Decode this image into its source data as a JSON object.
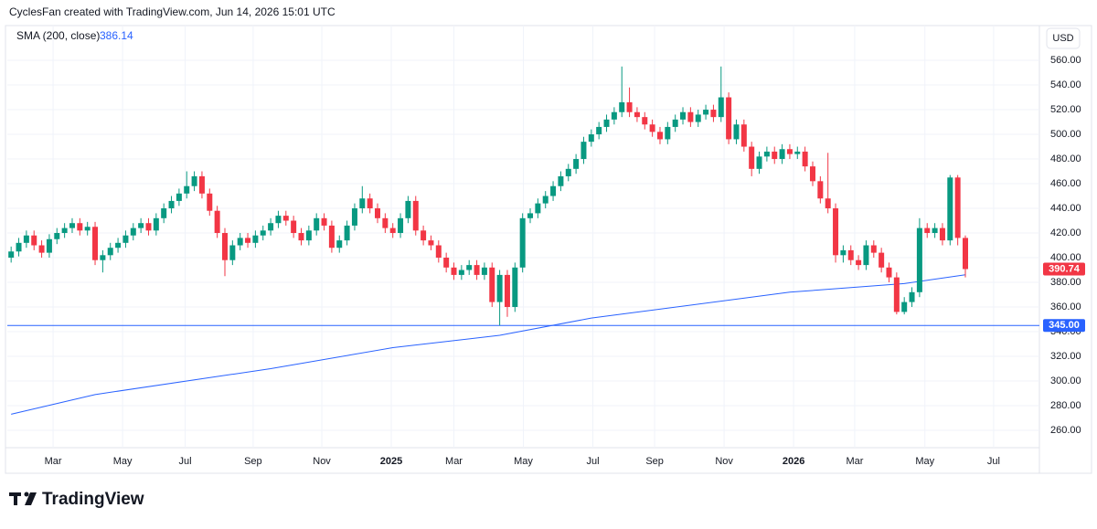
{
  "chart_data": {
    "type": "candlestick",
    "header": "CyclesFan created with TradingView.com, Jun 14, 2026 15:01 UTC",
    "currency": "USD",
    "brand": "TradingView",
    "up_color": "#089981",
    "down_color": "#f23645",
    "x": [
      0,
      1,
      2,
      3,
      4,
      5,
      6,
      7,
      8,
      9,
      10,
      11,
      12,
      13,
      14,
      15,
      16,
      17,
      18,
      19,
      20,
      21,
      22,
      23,
      24,
      25,
      26,
      27,
      28,
      29,
      30,
      31,
      32,
      33,
      34,
      35,
      36,
      37,
      38,
      39,
      40,
      41,
      42,
      43,
      44,
      45,
      46,
      47,
      48,
      49,
      50,
      51,
      52,
      53,
      54,
      55,
      56,
      57,
      58,
      59,
      60,
      61,
      62,
      63,
      64,
      65,
      66,
      67,
      68,
      69,
      70,
      71,
      72,
      73,
      74,
      75,
      76,
      77,
      78,
      79,
      80,
      81,
      82,
      83,
      84,
      85,
      86,
      87,
      88,
      89,
      90,
      91,
      92,
      93,
      94,
      95,
      96,
      97,
      98,
      99,
      100,
      101,
      102,
      103,
      104,
      105,
      106,
      107,
      108,
      109,
      110,
      111,
      112,
      113,
      114,
      115,
      116,
      117,
      118,
      119,
      120,
      121,
      122,
      123,
      124,
      125
    ],
    "open": [
      400,
      405,
      412,
      418,
      410,
      404,
      415,
      420,
      424,
      428,
      422,
      425,
      398,
      402,
      408,
      412,
      418,
      424,
      428,
      422,
      432,
      440,
      446,
      452,
      458,
      466,
      452,
      438,
      420,
      398,
      410,
      416,
      412,
      418,
      422,
      428,
      434,
      430,
      420,
      414,
      422,
      432,
      426,
      408,
      414,
      426,
      440,
      448,
      440,
      432,
      424,
      420,
      432,
      446,
      422,
      414,
      410,
      400,
      392,
      386,
      390,
      394,
      386,
      392,
      364,
      386,
      360,
      392,
      432,
      436,
      444,
      450,
      458,
      466,
      472,
      480,
      494,
      500,
      506,
      512,
      518,
      526,
      518,
      514,
      508,
      502,
      496,
      506,
      512,
      518,
      510,
      516,
      520,
      514,
      530,
      496,
      508,
      490,
      472,
      482,
      486,
      480,
      488,
      484,
      486,
      474,
      462,
      448,
      440,
      402,
      406,
      398,
      394,
      410,
      404,
      392,
      384,
      356,
      364,
      372,
      424,
      420,
      424,
      414,
      465,
      416
    ],
    "high": [
      409,
      416,
      422,
      422,
      414,
      419,
      424,
      428,
      432,
      432,
      429,
      429,
      406,
      412,
      416,
      422,
      428,
      432,
      432,
      436,
      444,
      450,
      456,
      470,
      470,
      470,
      456,
      442,
      424,
      414,
      420,
      420,
      422,
      426,
      432,
      438,
      438,
      434,
      424,
      426,
      436,
      436,
      430,
      418,
      430,
      444,
      458,
      452,
      444,
      436,
      428,
      436,
      450,
      450,
      426,
      418,
      414,
      404,
      396,
      394,
      398,
      398,
      396,
      396,
      390,
      390,
      396,
      436,
      440,
      448,
      454,
      462,
      470,
      476,
      484,
      498,
      504,
      510,
      516,
      522,
      555,
      538,
      522,
      518,
      512,
      506,
      510,
      516,
      522,
      522,
      520,
      524,
      524,
      555,
      534,
      512,
      512,
      494,
      486,
      490,
      490,
      492,
      492,
      490,
      490,
      478,
      466,
      485,
      444,
      410,
      410,
      402,
      414,
      414,
      408,
      396,
      388,
      368,
      376,
      432,
      428,
      428,
      428,
      467,
      467,
      418
    ],
    "low": [
      396,
      401,
      408,
      406,
      400,
      400,
      411,
      416,
      420,
      418,
      418,
      394,
      388,
      398,
      404,
      408,
      414,
      420,
      418,
      418,
      428,
      436,
      442,
      448,
      454,
      448,
      434,
      416,
      385,
      394,
      406,
      408,
      408,
      414,
      418,
      424,
      426,
      416,
      410,
      410,
      418,
      422,
      404,
      404,
      410,
      422,
      436,
      436,
      428,
      420,
      416,
      416,
      428,
      418,
      410,
      406,
      396,
      388,
      382,
      382,
      386,
      382,
      382,
      360,
      345,
      352,
      356,
      388,
      428,
      432,
      440,
      446,
      454,
      462,
      468,
      476,
      490,
      496,
      502,
      508,
      514,
      514,
      510,
      504,
      498,
      492,
      492,
      502,
      508,
      506,
      506,
      512,
      510,
      510,
      492,
      492,
      486,
      466,
      468,
      478,
      476,
      476,
      480,
      480,
      470,
      458,
      444,
      436,
      396,
      396,
      394,
      390,
      390,
      400,
      388,
      380,
      354,
      354,
      360,
      368,
      416,
      416,
      410,
      410,
      410,
      384
    ],
    "close": [
      405,
      412,
      418,
      410,
      404,
      415,
      420,
      424,
      428,
      422,
      425,
      398,
      402,
      408,
      412,
      418,
      424,
      428,
      422,
      432,
      440,
      446,
      452,
      458,
      466,
      452,
      438,
      420,
      398,
      410,
      416,
      412,
      418,
      422,
      428,
      434,
      430,
      420,
      414,
      422,
      432,
      426,
      408,
      414,
      426,
      440,
      448,
      440,
      432,
      424,
      420,
      432,
      446,
      422,
      414,
      410,
      400,
      392,
      386,
      390,
      394,
      386,
      392,
      364,
      386,
      360,
      392,
      432,
      436,
      444,
      450,
      458,
      466,
      472,
      480,
      494,
      500,
      506,
      512,
      518,
      526,
      518,
      514,
      508,
      502,
      496,
      506,
      512,
      518,
      510,
      516,
      520,
      514,
      530,
      496,
      508,
      490,
      472,
      482,
      486,
      480,
      488,
      484,
      486,
      474,
      462,
      448,
      440,
      402,
      406,
      398,
      394,
      410,
      404,
      392,
      384,
      356,
      364,
      372,
      424,
      420,
      424,
      414,
      465,
      416,
      390.74
    ],
    "sma": {
      "name": "SMA (200, close)",
      "last": 386.14,
      "color": "#2962ff",
      "x": [
        0,
        11,
        34,
        50,
        64,
        76,
        102,
        117,
        125
      ],
      "values": [
        273,
        289,
        310,
        327,
        337,
        351,
        372,
        379,
        386.14
      ]
    },
    "hline": {
      "value": 345,
      "label": "345.00",
      "color": "#2962ff"
    },
    "xlim": [
      -0.5,
      134.7
    ],
    "ylim": [
      245.9,
      579.3
    ],
    "xticks": [
      {
        "value": 5.5,
        "label": "Mar"
      },
      {
        "value": 14.6,
        "label": "May"
      },
      {
        "value": 22.8,
        "label": "Jul"
      },
      {
        "value": 31.7,
        "label": "Sep"
      },
      {
        "value": 40.7,
        "label": "Nov"
      },
      {
        "value": 49.8,
        "label": "2025"
      },
      {
        "value": 58.0,
        "label": "Mar"
      },
      {
        "value": 67.1,
        "label": "May"
      },
      {
        "value": 76.2,
        "label": "Jul"
      },
      {
        "value": 84.3,
        "label": "Sep"
      },
      {
        "value": 93.4,
        "label": "Nov"
      },
      {
        "value": 102.5,
        "label": "2026"
      },
      {
        "value": 110.5,
        "label": "Mar"
      },
      {
        "value": 119.7,
        "label": "May"
      },
      {
        "value": 128.7,
        "label": "Jul"
      }
    ],
    "yticks": [
      {
        "value": 260,
        "label": "260.00"
      },
      {
        "value": 280,
        "label": "280.00"
      },
      {
        "value": 300,
        "label": "300.00"
      },
      {
        "value": 320,
        "label": "320.00"
      },
      {
        "value": 340,
        "label": "340.00"
      },
      {
        "value": 360,
        "label": "360.00"
      },
      {
        "value": 380,
        "label": "380.00"
      },
      {
        "value": 400,
        "label": "400.00"
      },
      {
        "value": 420,
        "label": "420.00"
      },
      {
        "value": 440,
        "label": "440.00"
      },
      {
        "value": 460,
        "label": "460.00"
      },
      {
        "value": 480,
        "label": "480.00"
      },
      {
        "value": 500,
        "label": "500.00"
      },
      {
        "value": 520,
        "label": "520.00"
      },
      {
        "value": 540,
        "label": "540.00"
      },
      {
        "value": 560,
        "label": "560.00"
      }
    ],
    "grid": true
  }
}
